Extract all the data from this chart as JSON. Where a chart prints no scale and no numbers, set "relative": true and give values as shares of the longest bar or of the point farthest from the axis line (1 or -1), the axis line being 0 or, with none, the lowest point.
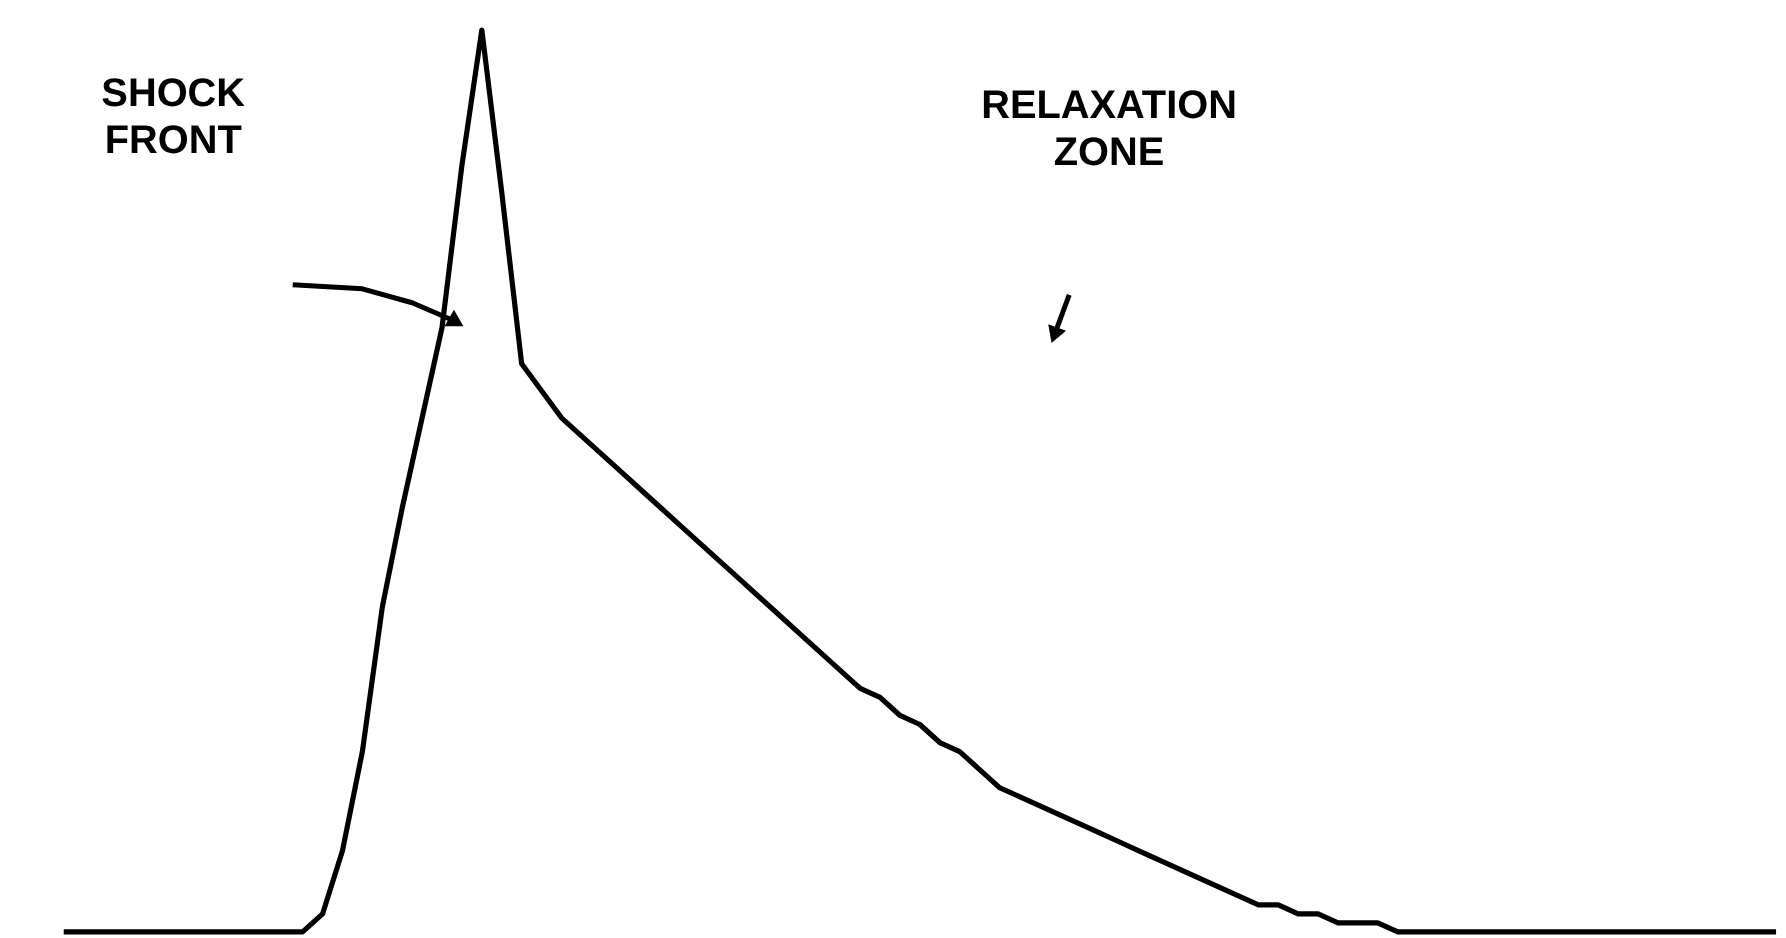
{
  "chart_data": {
    "type": "line",
    "relative": true,
    "categories": [
      null,
      null,
      null,
      null,
      null,
      null,
      null,
      null,
      null,
      null,
      null,
      null,
      null,
      null,
      null,
      null,
      null,
      null,
      null,
      null,
      null,
      null,
      null,
      null,
      null,
      null,
      null,
      null,
      null,
      null,
      null,
      null,
      null,
      null,
      null,
      null,
      null,
      null,
      null,
      null,
      null,
      null,
      null,
      null,
      null,
      null,
      null,
      null,
      null,
      null,
      null,
      null,
      null,
      null,
      null,
      null,
      null,
      null,
      null,
      null,
      null,
      null,
      null,
      null,
      null,
      null,
      null,
      null,
      null,
      null,
      null,
      null,
      null,
      null,
      null,
      null,
      null,
      null,
      null,
      null,
      null,
      null,
      null,
      null,
      null,
      null,
      null
    ],
    "series": [
      {
        "color": "#000000",
        "values": [
          0,
          0,
          0,
          0,
          0,
          0,
          0,
          0,
          0,
          0,
          0,
          0,
          0,
          0.02,
          0.09,
          0.2,
          0.36,
          0.47,
          0.57,
          0.67,
          0.85,
          1,
          0.82,
          0.63,
          0.6,
          0.57,
          0.55,
          0.53,
          0.51,
          0.49,
          0.47,
          0.45,
          0.43,
          0.41,
          0.39,
          0.37,
          0.35,
          0.33,
          0.31,
          0.29,
          0.27,
          0.26,
          0.24,
          0.23,
          0.21,
          0.2,
          0.18,
          0.16,
          0.15,
          0.14,
          0.13,
          0.12,
          0.11,
          0.1,
          0.09,
          0.08,
          0.07,
          0.06,
          0.05,
          0.04,
          0.03,
          0.03,
          0.02,
          0.02,
          0.01,
          0.01,
          0.01,
          0,
          0,
          0,
          0,
          0,
          0,
          0,
          0,
          0,
          0,
          0,
          0,
          0,
          0,
          0,
          0,
          0,
          0,
          0,
          0
        ]
      }
    ],
    "annotations": [
      "SHOCK FRONT",
      "RELAXATION ZONE"
    ],
    "marker": "none",
    "line_style": "solid"
  }
}
